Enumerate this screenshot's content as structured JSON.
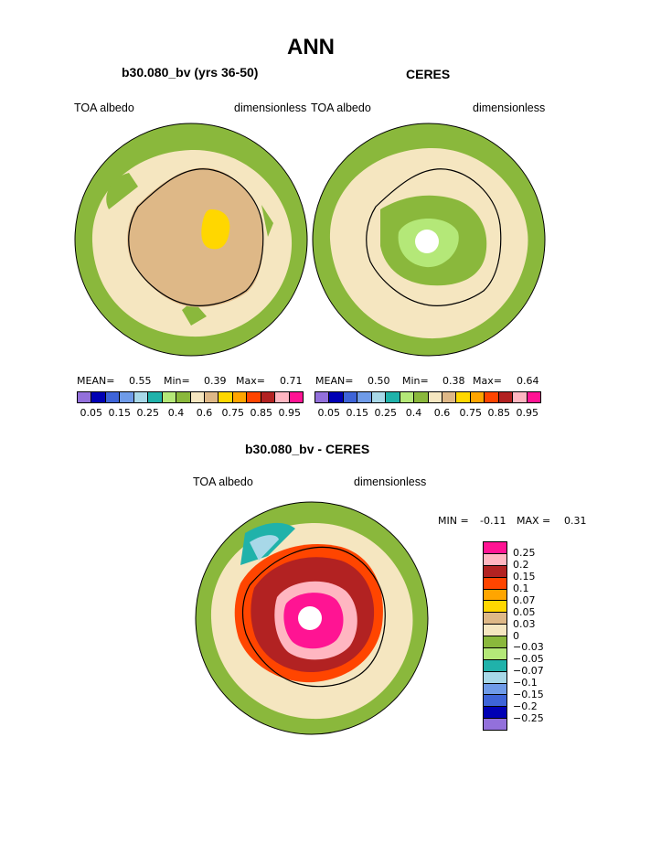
{
  "title": "ANN",
  "panel_left": {
    "subtitle": "b30.080_bv (yrs 36-50)",
    "left_label": "TOA albedo",
    "right_label": "dimensionless",
    "stats": {
      "mean_label": "MEAN=",
      "mean": "0.55",
      "min_label": "Min=",
      "min": "0.39",
      "max_label": "Max=",
      "max": "0.71"
    }
  },
  "panel_right": {
    "subtitle": "CERES",
    "left_label": "TOA albedo",
    "right_label": "dimensionless",
    "stats": {
      "mean_label": "MEAN=",
      "mean": "0.50",
      "min_label": "Min=",
      "min": "0.38",
      "max_label": "Max=",
      "max": "0.64"
    }
  },
  "colorbar_abs": {
    "colors": [
      "#9370db",
      "#0000b4",
      "#3e64d8",
      "#6f9be8",
      "#a8d8e8",
      "#20b2aa",
      "#b4e878",
      "#8ab83c",
      "#f5e6c0",
      "#deb887",
      "#ffd700",
      "#ffa500",
      "#ff4500",
      "#b22222",
      "#ffb6c1",
      "#ff1493"
    ],
    "labels": [
      "0.05",
      "0.15",
      "0.25",
      "0.4",
      "0.6",
      "0.75",
      "0.85",
      "0.95"
    ]
  },
  "panel_diff": {
    "subtitle": "b30.080_bv - CERES",
    "left_label": "TOA albedo",
    "right_label": "dimensionless",
    "min_label": "MIN =",
    "min": "-0.11",
    "max_label": "MAX =",
    "max": "0.31"
  },
  "colorbar_diff": {
    "colors": [
      "#ff1493",
      "#ffb6c1",
      "#b22222",
      "#ff4500",
      "#ffa500",
      "#ffd700",
      "#deb887",
      "#f5e6c0",
      "#8ab83c",
      "#b4e878",
      "#20b2aa",
      "#a8d8e8",
      "#6f9be8",
      "#3e64d8",
      "#0000b4",
      "#9370db"
    ],
    "labels": [
      "0.25",
      "0.2",
      "0.15",
      "0.1",
      "0.07",
      "0.05",
      "0.03",
      "0",
      "−0.03",
      "−0.05",
      "−0.07",
      "−0.1",
      "−0.15",
      "−0.2",
      "−0.25"
    ]
  }
}
